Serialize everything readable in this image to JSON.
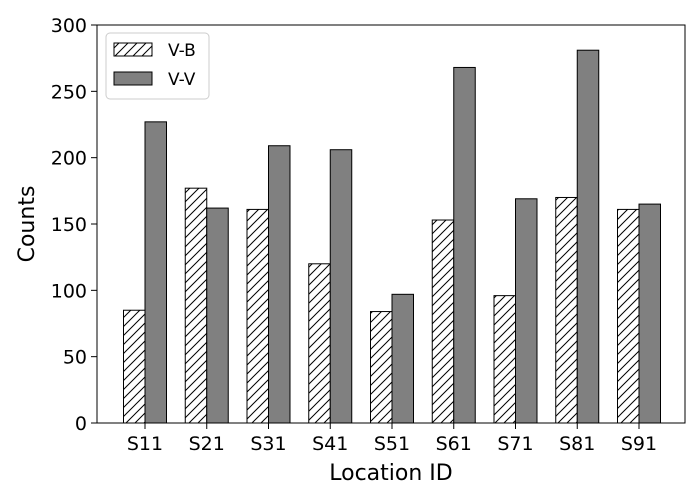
{
  "chart_data": {
    "type": "bar",
    "title": "",
    "xlabel": "Location ID",
    "ylabel": "Counts",
    "categories": [
      "S11",
      "S21",
      "S31",
      "S41",
      "S51",
      "S61",
      "S71",
      "S81",
      "S91"
    ],
    "series": [
      {
        "name": "V-B",
        "style": "hatched",
        "fill": "#ffffff",
        "edge": "#000000",
        "values": [
          85,
          177,
          161,
          120,
          84,
          153,
          96,
          170,
          161
        ]
      },
      {
        "name": "V-V",
        "style": "solid",
        "fill": "#808080",
        "edge": "#000000",
        "values": [
          227,
          162,
          209,
          206,
          97,
          268,
          169,
          281,
          165
        ]
      }
    ],
    "ylim": [
      0,
      300
    ],
    "yticks": [
      0,
      50,
      100,
      150,
      200,
      250,
      300
    ],
    "grid": false,
    "legend_position": "top-left"
  }
}
